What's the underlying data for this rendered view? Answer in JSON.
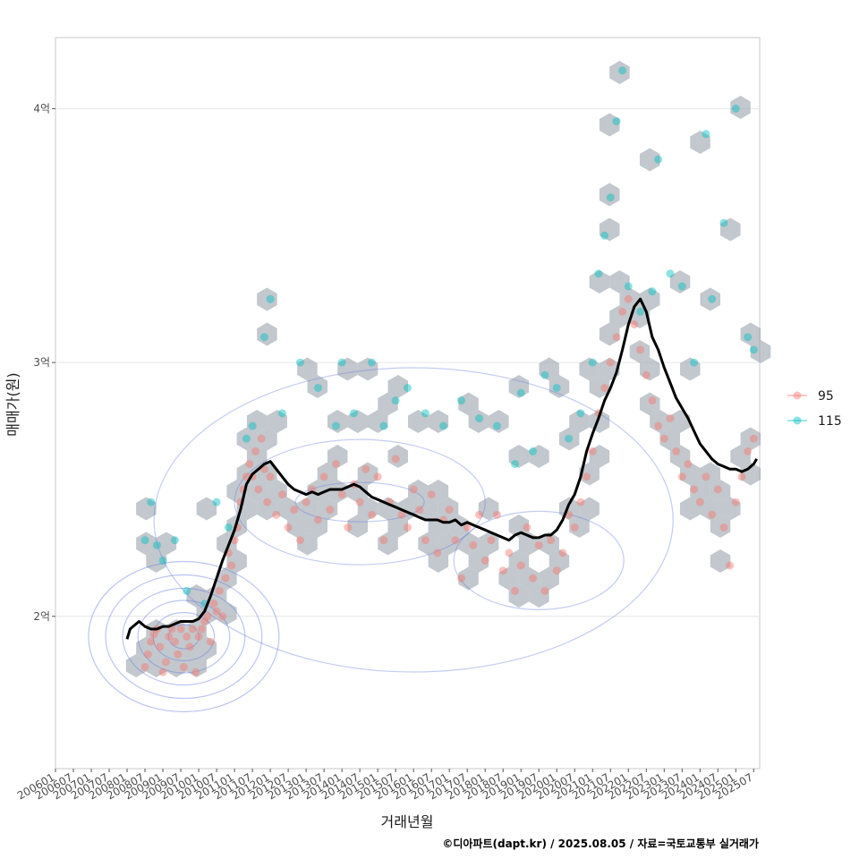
{
  "chart_data": {
    "type": "scatter",
    "xlabel": "거래년월",
    "ylabel": "매매가(원)",
    "caption": "©디아파트(dapt.kr) / 2025.08.05 / 자료=국토교통부 실거래가",
    "xlim": [
      "2006-01",
      "2025-09"
    ],
    "ylim": [
      1.4,
      4.28
    ],
    "y_unit": "억",
    "y_ticks": [
      {
        "value": 2,
        "label": "2억"
      },
      {
        "value": 3,
        "label": "3억"
      },
      {
        "value": 4,
        "label": "4억"
      }
    ],
    "x_ticks": [
      "200601",
      "200607",
      "200701",
      "200707",
      "200801",
      "200807",
      "200901",
      "200907",
      "201001",
      "201007",
      "201101",
      "201107",
      "201201",
      "201207",
      "201301",
      "201307",
      "201401",
      "201407",
      "201501",
      "201507",
      "201601",
      "201607",
      "201701",
      "201707",
      "201801",
      "201807",
      "201901",
      "201907",
      "202001",
      "202007",
      "202101",
      "202107",
      "202201",
      "202207",
      "202301",
      "202307",
      "202401",
      "202407",
      "202501",
      "202507"
    ],
    "grid": true,
    "legend_position": "right",
    "legend": [
      {
        "name": "95",
        "color": "#F8766D"
      },
      {
        "name": "115",
        "color": "#00BFC4"
      }
    ],
    "hexbin_color": "#9aa3ab",
    "contour_color": "#6b7fe0",
    "trend_color": "#000000",
    "series": [
      {
        "name": "95",
        "color": "#F8766D",
        "points": [
          [
            "2008-07",
            1.8
          ],
          [
            "2008-08",
            1.85
          ],
          [
            "2008-09",
            1.9
          ],
          [
            "2008-10",
            1.93
          ],
          [
            "2008-11",
            1.95
          ],
          [
            "2008-12",
            1.88
          ],
          [
            "2009-01",
            1.78
          ],
          [
            "2009-02",
            1.82
          ],
          [
            "2009-03",
            1.92
          ],
          [
            "2009-04",
            1.95
          ],
          [
            "2009-05",
            1.9
          ],
          [
            "2009-06",
            1.85
          ],
          [
            "2009-07",
            1.95
          ],
          [
            "2009-08",
            1.8
          ],
          [
            "2009-09",
            1.92
          ],
          [
            "2009-10",
            1.88
          ],
          [
            "2009-11",
            1.95
          ],
          [
            "2009-12",
            1.78
          ],
          [
            "2010-01",
            1.92
          ],
          [
            "2010-02",
            1.95
          ],
          [
            "2010-03",
            1.98
          ],
          [
            "2010-04",
            2.0
          ],
          [
            "2010-05",
            1.9
          ],
          [
            "2010-06",
            2.05
          ],
          [
            "2010-07",
            2.02
          ],
          [
            "2010-08",
            2.1
          ],
          [
            "2010-09",
            2.0
          ],
          [
            "2010-10",
            2.15
          ],
          [
            "2010-11",
            2.25
          ],
          [
            "2010-12",
            2.2
          ],
          [
            "2011-01",
            2.3
          ],
          [
            "2011-02",
            2.35
          ],
          [
            "2011-03",
            2.45
          ],
          [
            "2011-04",
            2.5
          ],
          [
            "2011-05",
            2.55
          ],
          [
            "2011-06",
            2.6
          ],
          [
            "2011-07",
            2.55
          ],
          [
            "2011-08",
            2.65
          ],
          [
            "2011-09",
            2.5
          ],
          [
            "2011-10",
            2.7
          ],
          [
            "2011-11",
            2.58
          ],
          [
            "2011-12",
            2.45
          ],
          [
            "2012-01",
            2.55
          ],
          [
            "2012-03",
            2.4
          ],
          [
            "2012-05",
            2.48
          ],
          [
            "2012-07",
            2.35
          ],
          [
            "2012-09",
            2.42
          ],
          [
            "2012-11",
            2.3
          ],
          [
            "2013-01",
            2.45
          ],
          [
            "2013-03",
            2.5
          ],
          [
            "2013-05",
            2.38
          ],
          [
            "2013-07",
            2.55
          ],
          [
            "2013-09",
            2.42
          ],
          [
            "2013-11",
            2.6
          ],
          [
            "2014-01",
            2.48
          ],
          [
            "2014-03",
            2.35
          ],
          [
            "2014-05",
            2.52
          ],
          [
            "2014-07",
            2.45
          ],
          [
            "2014-09",
            2.58
          ],
          [
            "2014-11",
            2.4
          ],
          [
            "2015-01",
            2.55
          ],
          [
            "2015-03",
            2.3
          ],
          [
            "2015-05",
            2.45
          ],
          [
            "2015-07",
            2.62
          ],
          [
            "2015-09",
            2.4
          ],
          [
            "2015-11",
            2.35
          ],
          [
            "2016-01",
            2.5
          ],
          [
            "2016-03",
            2.42
          ],
          [
            "2016-05",
            2.3
          ],
          [
            "2016-07",
            2.48
          ],
          [
            "2016-09",
            2.25
          ],
          [
            "2016-11",
            2.38
          ],
          [
            "2017-01",
            2.42
          ],
          [
            "2017-03",
            2.3
          ],
          [
            "2017-05",
            2.15
          ],
          [
            "2017-07",
            2.35
          ],
          [
            "2017-09",
            2.28
          ],
          [
            "2017-11",
            2.4
          ],
          [
            "2018-01",
            2.22
          ],
          [
            "2018-03",
            2.3
          ],
          [
            "2018-05",
            2.4
          ],
          [
            "2018-07",
            2.18
          ],
          [
            "2018-09",
            2.25
          ],
          [
            "2018-11",
            2.1
          ],
          [
            "2019-01",
            2.2
          ],
          [
            "2019-03",
            2.35
          ],
          [
            "2019-05",
            2.15
          ],
          [
            "2019-07",
            2.28
          ],
          [
            "2019-09",
            2.1
          ],
          [
            "2019-11",
            2.3
          ],
          [
            "2020-01",
            2.18
          ],
          [
            "2020-03",
            2.25
          ],
          [
            "2020-05",
            2.4
          ],
          [
            "2020-07",
            2.35
          ],
          [
            "2020-09",
            2.45
          ],
          [
            "2020-11",
            2.55
          ],
          [
            "2021-01",
            2.65
          ],
          [
            "2021-03",
            2.8
          ],
          [
            "2021-05",
            2.9
          ],
          [
            "2021-07",
            3.0
          ],
          [
            "2021-09",
            3.1
          ],
          [
            "2021-11",
            3.2
          ],
          [
            "2022-01",
            3.25
          ],
          [
            "2022-03",
            3.15
          ],
          [
            "2022-05",
            3.05
          ],
          [
            "2022-07",
            2.95
          ],
          [
            "2022-09",
            2.85
          ],
          [
            "2022-11",
            2.75
          ],
          [
            "2023-01",
            2.7
          ],
          [
            "2023-03",
            2.78
          ],
          [
            "2023-05",
            2.65
          ],
          [
            "2023-07",
            2.55
          ],
          [
            "2023-09",
            2.6
          ],
          [
            "2023-11",
            2.5
          ],
          [
            "2024-01",
            2.45
          ],
          [
            "2024-03",
            2.55
          ],
          [
            "2024-05",
            2.4
          ],
          [
            "2024-07",
            2.5
          ],
          [
            "2024-09",
            2.35
          ],
          [
            "2024-11",
            2.2
          ],
          [
            "2025-01",
            2.45
          ],
          [
            "2025-03",
            2.55
          ],
          [
            "2025-05",
            2.65
          ],
          [
            "2025-07",
            2.7
          ]
        ]
      },
      {
        "name": "115",
        "color": "#00BFC4",
        "points": [
          [
            "2008-07",
            2.3
          ],
          [
            "2008-09",
            2.45
          ],
          [
            "2008-11",
            2.28
          ],
          [
            "2009-01",
            2.22
          ],
          [
            "2009-05",
            2.3
          ],
          [
            "2009-09",
            2.1
          ],
          [
            "2010-03",
            2.05
          ],
          [
            "2010-07",
            2.45
          ],
          [
            "2010-11",
            2.35
          ],
          [
            "2011-05",
            2.7
          ],
          [
            "2011-07",
            2.75
          ],
          [
            "2011-11",
            3.1
          ],
          [
            "2012-01",
            3.25
          ],
          [
            "2012-05",
            2.8
          ],
          [
            "2012-11",
            3.0
          ],
          [
            "2013-05",
            2.9
          ],
          [
            "2013-11",
            2.75
          ],
          [
            "2014-01",
            3.0
          ],
          [
            "2014-05",
            2.8
          ],
          [
            "2014-11",
            3.0
          ],
          [
            "2015-03",
            2.75
          ],
          [
            "2015-07",
            2.85
          ],
          [
            "2015-11",
            2.9
          ],
          [
            "2016-05",
            2.8
          ],
          [
            "2016-11",
            2.75
          ],
          [
            "2017-05",
            2.85
          ],
          [
            "2017-11",
            2.78
          ],
          [
            "2018-05",
            2.75
          ],
          [
            "2018-11",
            2.6
          ],
          [
            "2019-01",
            2.88
          ],
          [
            "2019-05",
            2.65
          ],
          [
            "2019-09",
            2.95
          ],
          [
            "2020-01",
            2.9
          ],
          [
            "2020-05",
            2.7
          ],
          [
            "2020-09",
            2.8
          ],
          [
            "2021-01",
            3.0
          ],
          [
            "2021-03",
            3.35
          ],
          [
            "2021-05",
            3.5
          ],
          [
            "2021-07",
            3.65
          ],
          [
            "2021-09",
            3.95
          ],
          [
            "2021-11",
            4.15
          ],
          [
            "2022-01",
            3.3
          ],
          [
            "2022-05",
            3.2
          ],
          [
            "2022-09",
            3.28
          ],
          [
            "2022-11",
            3.8
          ],
          [
            "2023-03",
            3.35
          ],
          [
            "2023-07",
            3.3
          ],
          [
            "2023-11",
            3.0
          ],
          [
            "2024-03",
            3.9
          ],
          [
            "2024-05",
            3.25
          ],
          [
            "2024-09",
            3.55
          ],
          [
            "2025-01",
            4.0
          ],
          [
            "2025-05",
            3.1
          ],
          [
            "2025-07",
            3.05
          ]
        ]
      }
    ],
    "trend": [
      [
        "2008-01",
        1.91
      ],
      [
        "2008-02",
        1.95
      ],
      [
        "2008-03",
        1.96
      ],
      [
        "2008-05",
        1.98
      ],
      [
        "2008-07",
        1.96
      ],
      [
        "2008-09",
        1.95
      ],
      [
        "2008-11",
        1.95
      ],
      [
        "2009-01",
        1.96
      ],
      [
        "2009-03",
        1.96
      ],
      [
        "2009-05",
        1.97
      ],
      [
        "2009-07",
        1.98
      ],
      [
        "2009-09",
        1.98
      ],
      [
        "2009-11",
        1.98
      ],
      [
        "2010-01",
        1.99
      ],
      [
        "2010-03",
        2.02
      ],
      [
        "2010-05",
        2.08
      ],
      [
        "2010-07",
        2.15
      ],
      [
        "2010-09",
        2.22
      ],
      [
        "2010-11",
        2.28
      ],
      [
        "2011-01",
        2.34
      ],
      [
        "2011-03",
        2.42
      ],
      [
        "2011-05",
        2.52
      ],
      [
        "2011-07",
        2.56
      ],
      [
        "2011-09",
        2.58
      ],
      [
        "2011-11",
        2.6
      ],
      [
        "2012-01",
        2.61
      ],
      [
        "2012-03",
        2.58
      ],
      [
        "2012-05",
        2.55
      ],
      [
        "2012-07",
        2.52
      ],
      [
        "2012-09",
        2.5
      ],
      [
        "2012-11",
        2.49
      ],
      [
        "2013-01",
        2.48
      ],
      [
        "2013-03",
        2.49
      ],
      [
        "2013-05",
        2.48
      ],
      [
        "2013-07",
        2.49
      ],
      [
        "2013-09",
        2.5
      ],
      [
        "2013-11",
        2.5
      ],
      [
        "2014-01",
        2.5
      ],
      [
        "2014-03",
        2.51
      ],
      [
        "2014-05",
        2.52
      ],
      [
        "2014-07",
        2.51
      ],
      [
        "2014-09",
        2.49
      ],
      [
        "2014-11",
        2.47
      ],
      [
        "2015-01",
        2.46
      ],
      [
        "2015-03",
        2.45
      ],
      [
        "2015-05",
        2.44
      ],
      [
        "2015-07",
        2.43
      ],
      [
        "2015-09",
        2.42
      ],
      [
        "2015-11",
        2.41
      ],
      [
        "2016-01",
        2.4
      ],
      [
        "2016-03",
        2.39
      ],
      [
        "2016-05",
        2.38
      ],
      [
        "2016-07",
        2.38
      ],
      [
        "2016-09",
        2.38
      ],
      [
        "2016-11",
        2.37
      ],
      [
        "2017-01",
        2.37
      ],
      [
        "2017-03",
        2.38
      ],
      [
        "2017-05",
        2.36
      ],
      [
        "2017-07",
        2.37
      ],
      [
        "2017-09",
        2.36
      ],
      [
        "2017-11",
        2.35
      ],
      [
        "2018-01",
        2.34
      ],
      [
        "2018-03",
        2.33
      ],
      [
        "2018-05",
        2.32
      ],
      [
        "2018-07",
        2.31
      ],
      [
        "2018-09",
        2.3
      ],
      [
        "2018-11",
        2.32
      ],
      [
        "2019-01",
        2.33
      ],
      [
        "2019-03",
        2.32
      ],
      [
        "2019-05",
        2.31
      ],
      [
        "2019-07",
        2.31
      ],
      [
        "2019-09",
        2.32
      ],
      [
        "2019-11",
        2.32
      ],
      [
        "2020-01",
        2.34
      ],
      [
        "2020-03",
        2.38
      ],
      [
        "2020-05",
        2.44
      ],
      [
        "2020-07",
        2.48
      ],
      [
        "2020-09",
        2.55
      ],
      [
        "2020-11",
        2.65
      ],
      [
        "2021-01",
        2.72
      ],
      [
        "2021-03",
        2.78
      ],
      [
        "2021-05",
        2.85
      ],
      [
        "2021-07",
        2.9
      ],
      [
        "2021-09",
        2.96
      ],
      [
        "2021-11",
        3.05
      ],
      [
        "2022-01",
        3.15
      ],
      [
        "2022-03",
        3.22
      ],
      [
        "2022-05",
        3.25
      ],
      [
        "2022-07",
        3.2
      ],
      [
        "2022-09",
        3.1
      ],
      [
        "2022-11",
        3.05
      ],
      [
        "2023-01",
        2.98
      ],
      [
        "2023-03",
        2.92
      ],
      [
        "2023-05",
        2.86
      ],
      [
        "2023-07",
        2.82
      ],
      [
        "2023-09",
        2.78
      ],
      [
        "2023-11",
        2.73
      ],
      [
        "2024-01",
        2.68
      ],
      [
        "2024-03",
        2.65
      ],
      [
        "2024-05",
        2.62
      ],
      [
        "2024-07",
        2.6
      ],
      [
        "2024-09",
        2.59
      ],
      [
        "2024-11",
        2.58
      ],
      [
        "2025-01",
        2.58
      ],
      [
        "2025-03",
        2.57
      ],
      [
        "2025-05",
        2.58
      ],
      [
        "2025-07",
        2.6
      ],
      [
        "2025-08",
        2.62
      ]
    ]
  }
}
